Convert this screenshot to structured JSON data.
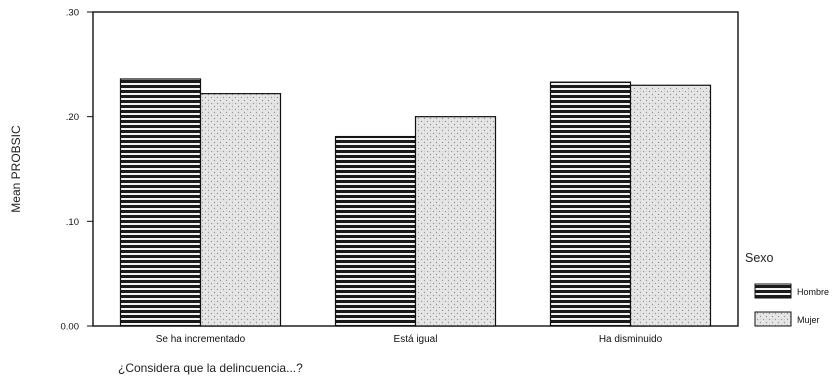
{
  "chart_data": {
    "type": "bar",
    "categories": [
      "Se ha incrementado",
      "Está igual",
      "Ha disminuido"
    ],
    "series": [
      {
        "name": "Hombre",
        "values": [
          0.236,
          0.181,
          0.233
        ],
        "color": "#1a1a1a",
        "pattern": "horizontal-stripes"
      },
      {
        "name": "Mujer",
        "values": [
          0.222,
          0.2,
          0.23
        ],
        "color": "#d9d9d9",
        "pattern": "light-stipple"
      }
    ],
    "ylim": [
      0,
      0.3
    ],
    "yticks": [
      0,
      0.1,
      0.2,
      0.3
    ],
    "ytick_labels": [
      "0.00",
      ".10",
      ".20",
      ".30"
    ],
    "ylabel": "Mean PROBSIC",
    "xlabel": "¿Considera que la delincuencia...?",
    "legend": {
      "title": "Sexo",
      "placement": "right"
    },
    "grid": false
  }
}
